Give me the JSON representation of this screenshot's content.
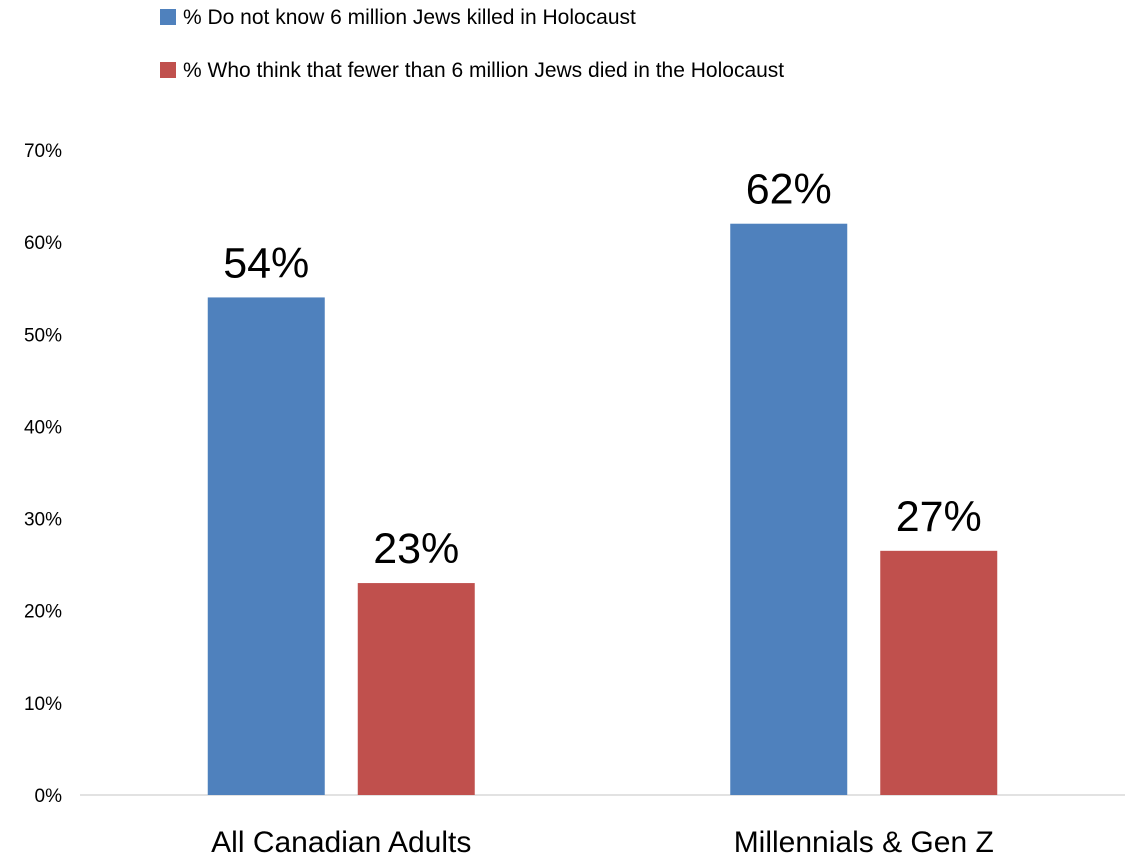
{
  "chart_data": {
    "type": "bar",
    "categories": [
      "All Canadian Adults",
      "Millennials & Gen Z"
    ],
    "series": [
      {
        "name": "% Do not know 6 million Jews killed in Holocaust",
        "values": [
          54,
          62
        ],
        "labels": [
          "54%",
          "62%"
        ],
        "color": "#4F81BD"
      },
      {
        "name": "% Who think that fewer than 6 million Jews died in the Holocaust",
        "values": [
          23,
          26.5
        ],
        "labels": [
          "23%",
          "27%"
        ],
        "color": "#C0504D"
      }
    ],
    "yticks": [
      0,
      10,
      20,
      30,
      40,
      50,
      60,
      70
    ],
    "ytick_labels": [
      "0%",
      "10%",
      "20%",
      "30%",
      "40%",
      "50%",
      "60%",
      "70%"
    ],
    "ylim": [
      0,
      70
    ],
    "grid": false,
    "legend_position": "top"
  }
}
